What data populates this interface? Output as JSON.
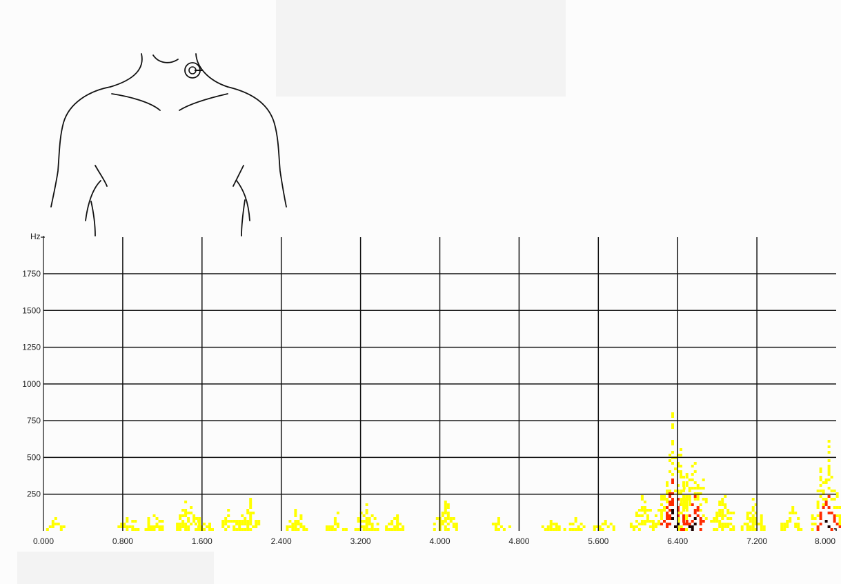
{
  "chart_data": {
    "type": "heatmap",
    "title": "",
    "xlabel": "",
    "ylabel": "Hz",
    "xlim": [
      0,
      8.0
    ],
    "ylim": [
      0,
      2000
    ],
    "x_ticks": [
      "0.000",
      "0.800",
      "1.600",
      "2.400",
      "3.200",
      "4.000",
      "4.800",
      "5.600",
      "6.400",
      "7.200",
      "8.000"
    ],
    "y_ticks": [
      "250",
      "500",
      "750",
      "1000",
      "1250",
      "1500",
      "1750"
    ],
    "grid": true,
    "colors": {
      "low": "#ffff00",
      "mid": "#ff2a00",
      "high": "#1a0000",
      "grid": "#111111"
    },
    "bursts": [
      {
        "t": 0.12,
        "max_hz": 100,
        "peak": 0.1
      },
      {
        "t": 0.85,
        "max_hz": 110,
        "peak": 0.2
      },
      {
        "t": 1.1,
        "max_hz": 160,
        "peak": 0.25
      },
      {
        "t": 1.45,
        "max_hz": 260,
        "peak": 0.3
      },
      {
        "t": 1.6,
        "max_hz": 130,
        "peak": 0.2
      },
      {
        "t": 1.85,
        "max_hz": 150,
        "peak": 0.25
      },
      {
        "t": 2.05,
        "max_hz": 270,
        "peak": 0.3
      },
      {
        "t": 2.55,
        "max_hz": 160,
        "peak": 0.2
      },
      {
        "t": 2.95,
        "max_hz": 130,
        "peak": 0.2
      },
      {
        "t": 3.25,
        "max_hz": 210,
        "peak": 0.3
      },
      {
        "t": 3.55,
        "max_hz": 110,
        "peak": 0.2
      },
      {
        "t": 4.05,
        "max_hz": 220,
        "peak": 0.35
      },
      {
        "t": 4.6,
        "max_hz": 100,
        "peak": 0.2
      },
      {
        "t": 5.1,
        "max_hz": 90,
        "peak": 0.2
      },
      {
        "t": 5.35,
        "max_hz": 110,
        "peak": 0.2
      },
      {
        "t": 5.65,
        "max_hz": 90,
        "peak": 0.2
      },
      {
        "t": 6.05,
        "max_hz": 280,
        "peak": 0.5
      },
      {
        "t": 6.35,
        "max_hz": 860,
        "peak": 1.0
      },
      {
        "t": 6.55,
        "max_hz": 700,
        "peak": 0.95
      },
      {
        "t": 6.85,
        "max_hz": 280,
        "peak": 0.4
      },
      {
        "t": 7.15,
        "max_hz": 240,
        "peak": 0.3
      },
      {
        "t": 7.55,
        "max_hz": 180,
        "peak": 0.3
      },
      {
        "t": 7.9,
        "max_hz": 690,
        "peak": 0.95
      }
    ]
  }
}
